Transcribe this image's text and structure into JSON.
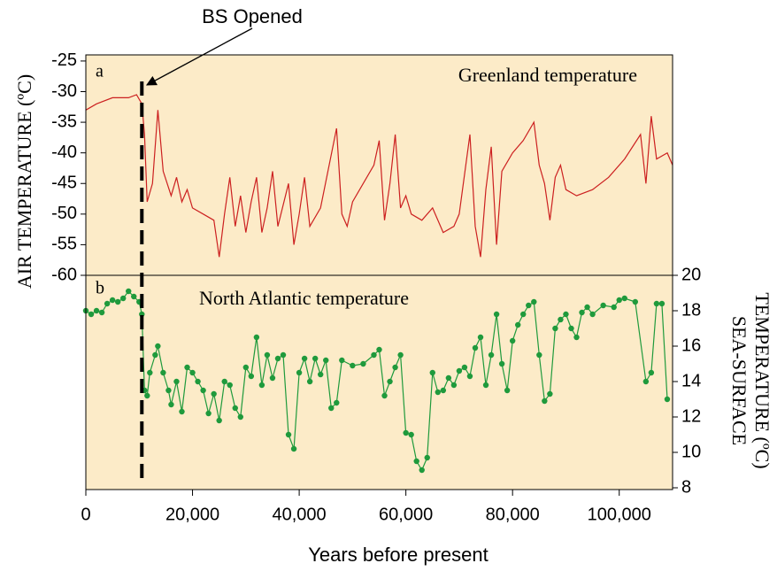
{
  "chart_data": [
    {
      "type": "line",
      "panel_label": "a",
      "title": "Greenland temperature",
      "ylabel": "AIR TEMPERATURE (ºC)",
      "xlim": [
        0,
        110000
      ],
      "ylim": [
        -60,
        -24
      ],
      "yticks": [
        -25,
        -30,
        -35,
        -40,
        -45,
        -50,
        -55,
        -60
      ],
      "annotation": {
        "text": "BS Opened",
        "x": 10500
      },
      "x": [
        0,
        2000,
        5000,
        8000,
        9500,
        10500,
        11000,
        11500,
        12500,
        13500,
        14500,
        16000,
        17000,
        18000,
        19000,
        20000,
        22000,
        24000,
        25000,
        26000,
        27000,
        28000,
        29000,
        30000,
        31000,
        32000,
        33000,
        34000,
        35000,
        36000,
        38000,
        39000,
        40000,
        41000,
        42000,
        44000,
        47000,
        48000,
        49000,
        50000,
        52000,
        54000,
        55000,
        56000,
        57000,
        58000,
        59000,
        60000,
        61000,
        63000,
        65000,
        67000,
        69000,
        70000,
        72000,
        73000,
        74000,
        75000,
        76000,
        77000,
        78000,
        80000,
        82000,
        84000,
        85000,
        86000,
        87000,
        88000,
        89000,
        90000,
        92000,
        95000,
        98000,
        101000,
        104000,
        105000,
        106000,
        107000,
        109000,
        110000
      ],
      "series": [
        {
          "name": "Greenland temperature",
          "color": "#cc2020",
          "values": [
            -33,
            -32,
            -31,
            -31,
            -30.5,
            -32,
            -37,
            -48,
            -45,
            -33,
            -43,
            -47,
            -44,
            -48,
            -46,
            -49,
            -50,
            -51,
            -57,
            -50,
            -44,
            -52,
            -47,
            -53,
            -48,
            -44,
            -53,
            -49,
            -43,
            -52,
            -45,
            -55,
            -50,
            -44,
            -52,
            -49,
            -36,
            -50,
            -52,
            -48,
            -45,
            -42,
            -38,
            -51,
            -45,
            -37,
            -49,
            -47,
            -50,
            -51,
            -49,
            -53,
            -52,
            -50,
            -37,
            -52,
            -57,
            -46,
            -39,
            -55,
            -43,
            -40,
            -38,
            -35,
            -42,
            -45,
            -51,
            -44,
            -42,
            -46,
            -47,
            -46,
            -44,
            -41,
            -37,
            -45,
            -34,
            -41,
            -40,
            -42
          ]
        }
      ]
    },
    {
      "type": "line",
      "panel_label": "b",
      "title": "North Atlantic temperature",
      "y2label": [
        "SEA-SURFACE",
        "TEMPERATURE (ºC)"
      ],
      "xlabel": "Years before present",
      "markers": true,
      "xlim": [
        0,
        110000
      ],
      "xticks": [
        0,
        {
          "value": 20000,
          "label": "20,000"
        },
        {
          "value": 40000,
          "label": "40,000"
        },
        {
          "value": 60000,
          "label": "60,000"
        },
        {
          "value": 80000,
          "label": "80,000"
        },
        {
          "value": 100000,
          "label": "100,000"
        }
      ],
      "y2lim": [
        8,
        20
      ],
      "y2ticks": [
        8,
        10,
        12,
        14,
        16,
        18,
        20
      ],
      "x": [
        0,
        1000,
        2000,
        3000,
        4000,
        5000,
        6000,
        7000,
        8000,
        9000,
        10000,
        10500,
        11000,
        11500,
        12000,
        13000,
        13500,
        14500,
        15500,
        16000,
        17000,
        18000,
        19000,
        20000,
        21000,
        22000,
        23000,
        24000,
        25000,
        26000,
        27000,
        28000,
        29000,
        30000,
        31000,
        32000,
        33000,
        34000,
        35000,
        36000,
        37000,
        38000,
        39000,
        40000,
        41000,
        42000,
        43000,
        44000,
        45000,
        46000,
        47000,
        48000,
        50000,
        52000,
        54000,
        55000,
        56000,
        57000,
        58000,
        59000,
        60000,
        61000,
        62000,
        63000,
        64000,
        65000,
        66000,
        67000,
        68000,
        69000,
        70000,
        71000,
        72000,
        73000,
        74000,
        75000,
        76000,
        77000,
        78000,
        79000,
        80000,
        81000,
        82000,
        83000,
        84000,
        85000,
        86000,
        87000,
        88000,
        89000,
        90000,
        91000,
        92000,
        93000,
        94000,
        95000,
        97000,
        99000,
        100000,
        101000,
        103000,
        105000,
        106000,
        107000,
        108000,
        109000
      ],
      "series": [
        {
          "name": "North Atlantic temperature",
          "color": "#1f9a3c",
          "axis": "y2",
          "values": [
            18,
            17.8,
            18,
            17.9,
            18.4,
            18.6,
            18.5,
            18.7,
            19.1,
            18.8,
            18.5,
            17.8,
            13.5,
            13.2,
            14.5,
            15.5,
            16,
            14.5,
            13.5,
            12.7,
            14,
            12.3,
            14.8,
            14.5,
            14,
            13.5,
            12.2,
            13.3,
            11.8,
            14,
            13.8,
            12.5,
            12,
            14.8,
            14.3,
            16.5,
            13.8,
            15.5,
            14.2,
            15.3,
            15.5,
            11,
            10.2,
            14.5,
            15.3,
            14,
            15.3,
            14.4,
            15.2,
            12.5,
            12.8,
            15.2,
            14.9,
            15,
            15.5,
            15.8,
            13.2,
            14,
            14.8,
            15.5,
            11.1,
            11,
            9.5,
            9,
            9.7,
            14.5,
            13.4,
            13.5,
            14.2,
            13.8,
            14.6,
            14.8,
            14.3,
            15.9,
            16.5,
            13.8,
            15.5,
            17.8,
            15,
            13.5,
            16.3,
            17.2,
            17.8,
            18.3,
            18.5,
            15.5,
            12.9,
            13.3,
            17,
            17.5,
            17.8,
            17,
            16.5,
            17.9,
            18.2,
            17.8,
            18.3,
            18.2,
            18.6,
            18.7,
            18.5,
            14,
            14.5,
            18.4,
            18.4,
            13
          ]
        }
      ]
    }
  ]
}
